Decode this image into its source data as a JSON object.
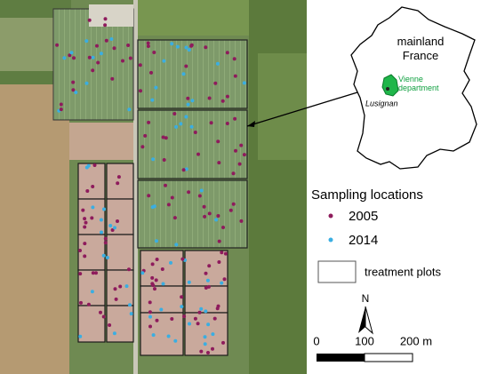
{
  "map": {
    "france_label": "mainland France",
    "department_label": "Vienne department",
    "town_label": "Lusignan",
    "legend": {
      "title": "Sampling locations",
      "items": [
        {
          "label": "2005",
          "color": "#8e1b5c"
        },
        {
          "label": "2014",
          "color": "#3aaee2"
        }
      ],
      "plots_label": "treatment plots"
    },
    "north_label": "N",
    "scale_labels": [
      "0",
      "100",
      "200 m"
    ]
  }
}
